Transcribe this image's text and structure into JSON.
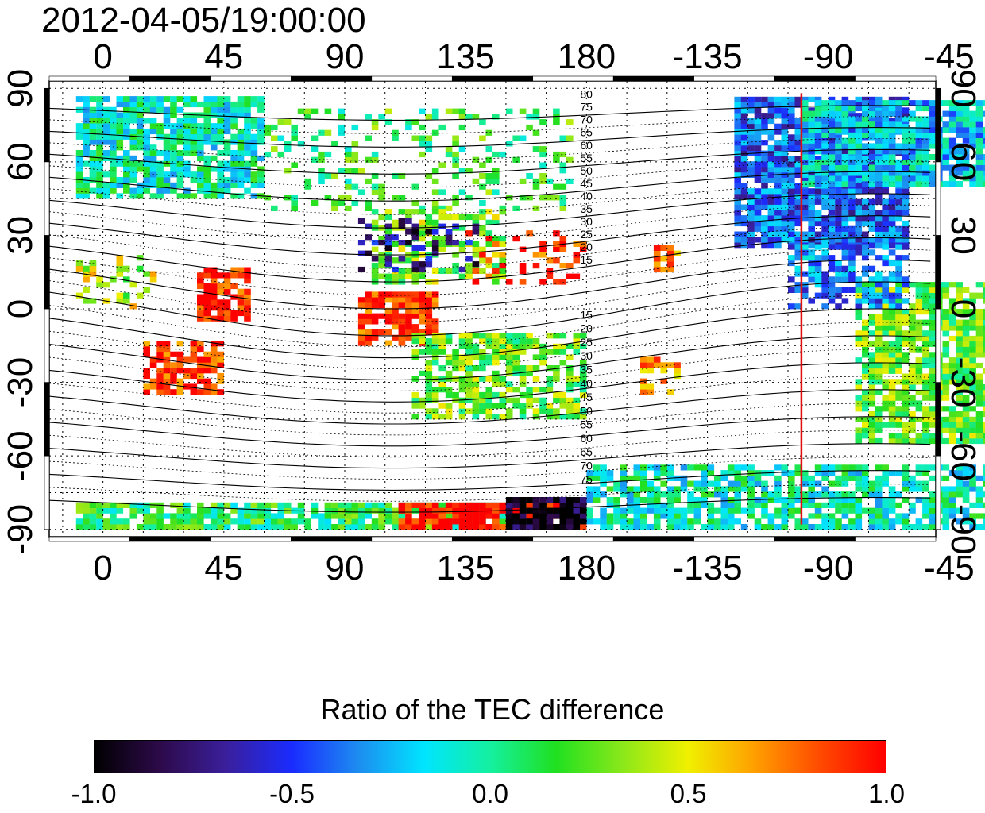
{
  "timestamp": "2012-04-05/19:00:00",
  "map": {
    "x_ticks_lon": [
      0,
      45,
      90,
      135,
      180,
      -135,
      -90,
      -45
    ],
    "x_tick_labels": [
      "0",
      "45",
      "90",
      "135",
      "180",
      "-135",
      "-90",
      "-45"
    ],
    "y_ticks_lat": [
      90,
      60,
      30,
      0,
      -30,
      -60,
      -90
    ],
    "y_tick_labels": [
      "90",
      "60",
      "30",
      "0",
      "-30",
      "-60",
      "-90"
    ],
    "lon_range": [
      -20,
      310
    ],
    "lat_range": [
      -93,
      93
    ],
    "marker_longitude": -100,
    "marker_color": "#e01010",
    "geomag_labels_north": [
      "80",
      "75",
      "70",
      "65",
      "60",
      "55",
      "50",
      "45",
      "40",
      "35",
      "30",
      "25",
      "20",
      "15"
    ],
    "geomag_labels_south": [
      "15",
      "20",
      "25",
      "30",
      "35",
      "40",
      "45",
      "50",
      "55",
      "60",
      "65",
      "70",
      "75"
    ]
  },
  "colorbar": {
    "title": "Ratio of the TEC difference",
    "min": -1.0,
    "max": 1.0,
    "tick_values": [
      -1.0,
      -0.5,
      0.0,
      0.5,
      1.0
    ],
    "tick_labels": [
      "-1.0",
      "-0.5",
      "0.0",
      "0.5",
      "1.0"
    ],
    "colormap": [
      "#000000",
      "#2d0a4a",
      "#3a1f9c",
      "#1a2cff",
      "#1d8cf0",
      "#00e5ff",
      "#14f0a0",
      "#20e020",
      "#8ae81a",
      "#f0f000",
      "#ffa000",
      "#ff4a00",
      "#ff0000"
    ]
  }
}
